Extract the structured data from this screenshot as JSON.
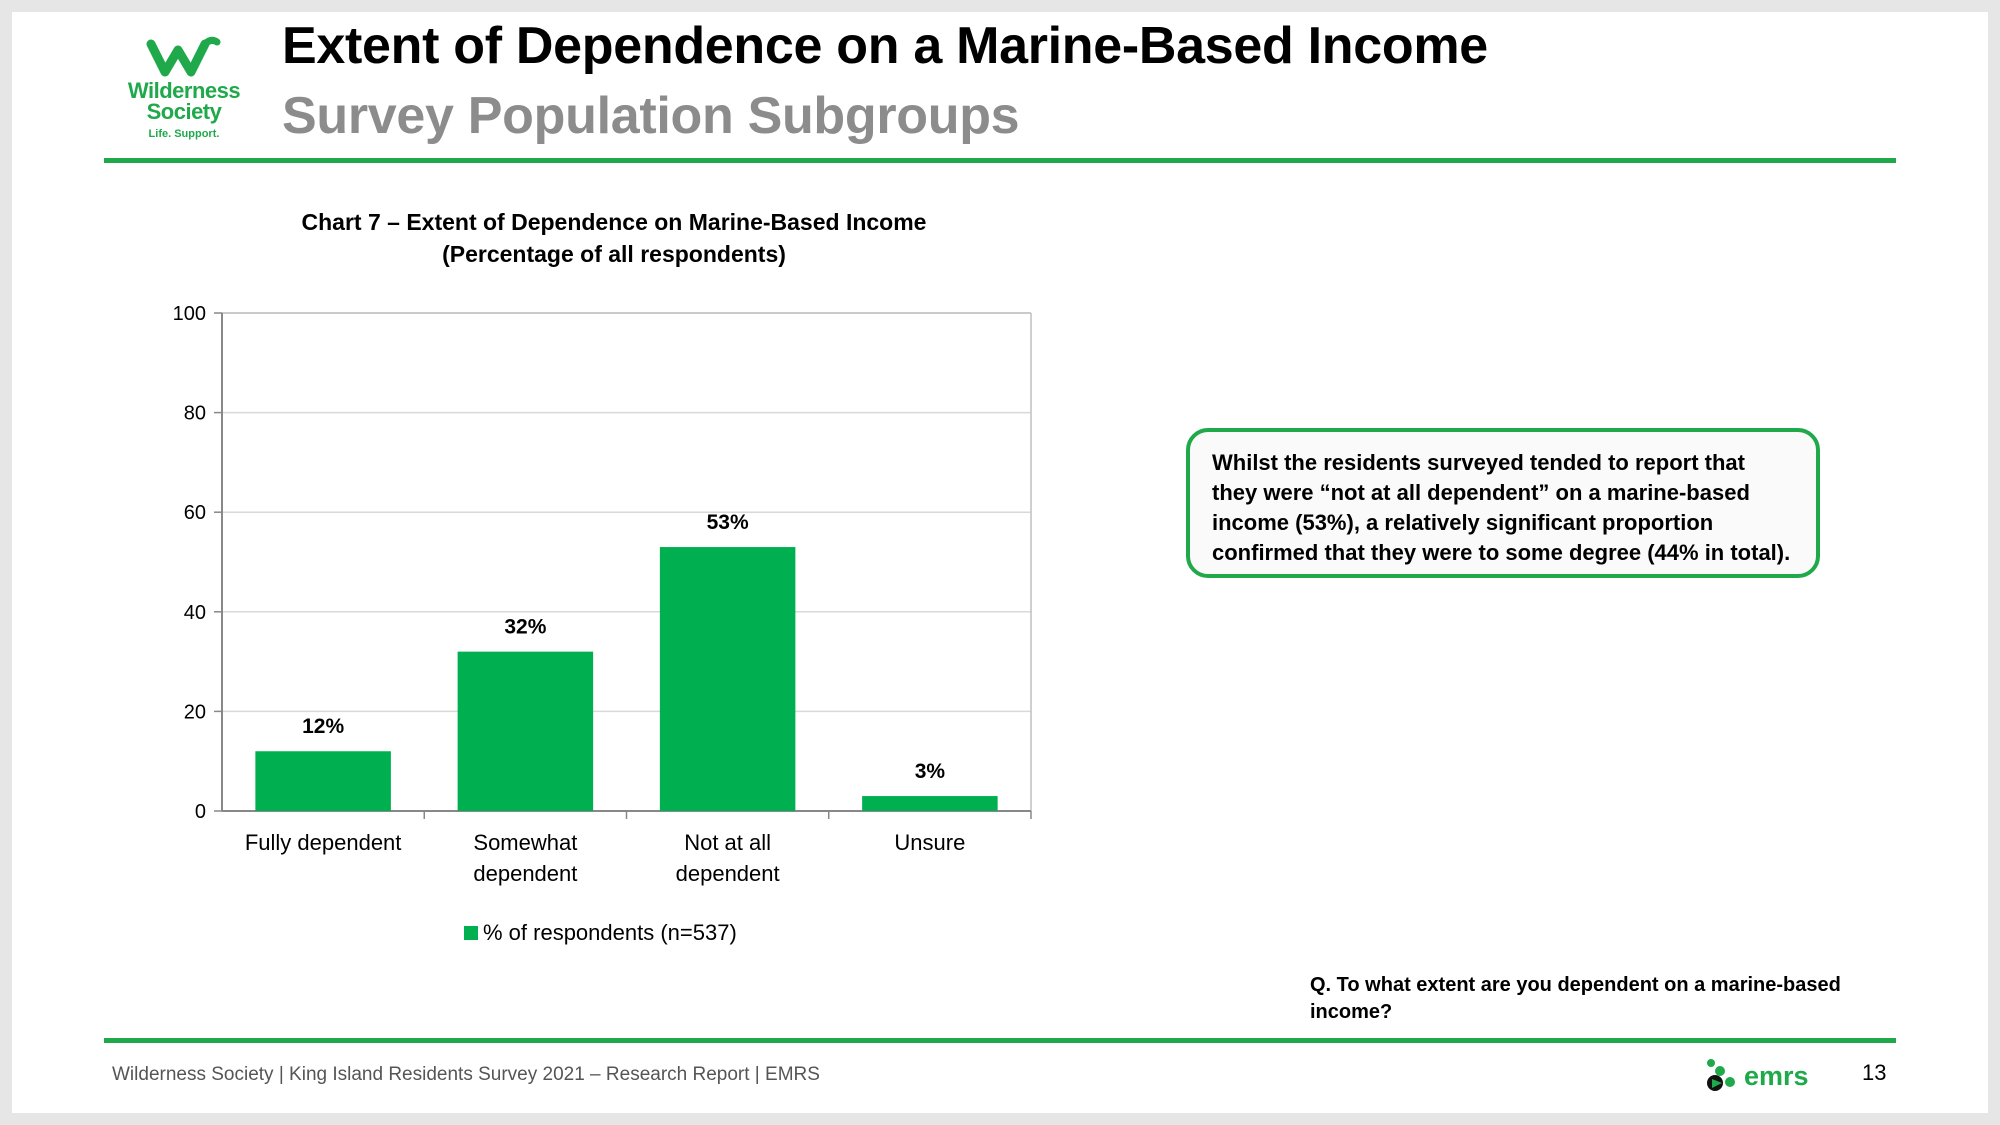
{
  "header": {
    "title": "Extent of Dependence on a Marine-Based Income",
    "subtitle": "Survey Population Subgroups"
  },
  "logo": {
    "line1": "Wilderness",
    "line2": "Society",
    "tagline": "Life. Support.",
    "icon": "wilderness-w-icon"
  },
  "colors": {
    "brand_green": "#1fa94b",
    "bar_green": "#00b050",
    "subtitle_grey": "#8c8c8c"
  },
  "chart_data": {
    "type": "bar",
    "title_line1": "Chart 7 – Extent of Dependence on Marine-Based Income",
    "title_line2": "(Percentage of all respondents)",
    "categories": [
      [
        "Fully dependent"
      ],
      [
        "Somewhat",
        "dependent"
      ],
      [
        "Not at all",
        "dependent"
      ],
      [
        "Unsure"
      ]
    ],
    "series": [
      {
        "name": "% of respondents (n=537)",
        "values": [
          12,
          32,
          53,
          3
        ],
        "labels": [
          "12%",
          "32%",
          "53%",
          "3%"
        ]
      }
    ],
    "ylim": [
      0,
      100
    ],
    "yticks": [
      0,
      20,
      40,
      60,
      80,
      100
    ],
    "grid": true,
    "legend": "bottom"
  },
  "callout": {
    "text": "Whilst the residents surveyed tended to report that they were “not at all dependent” on a marine-based income (53%), a relatively significant proportion confirmed that they were to some degree (44% in total)."
  },
  "question": "Q. To what extent are you dependent on a marine-based income?",
  "footer": {
    "text": "Wilderness Society | King Island Residents Survey 2021 – Research Report | EMRS",
    "brand": "emrs",
    "brand_icon": "emrs-dots-icon",
    "page_number": "13"
  }
}
